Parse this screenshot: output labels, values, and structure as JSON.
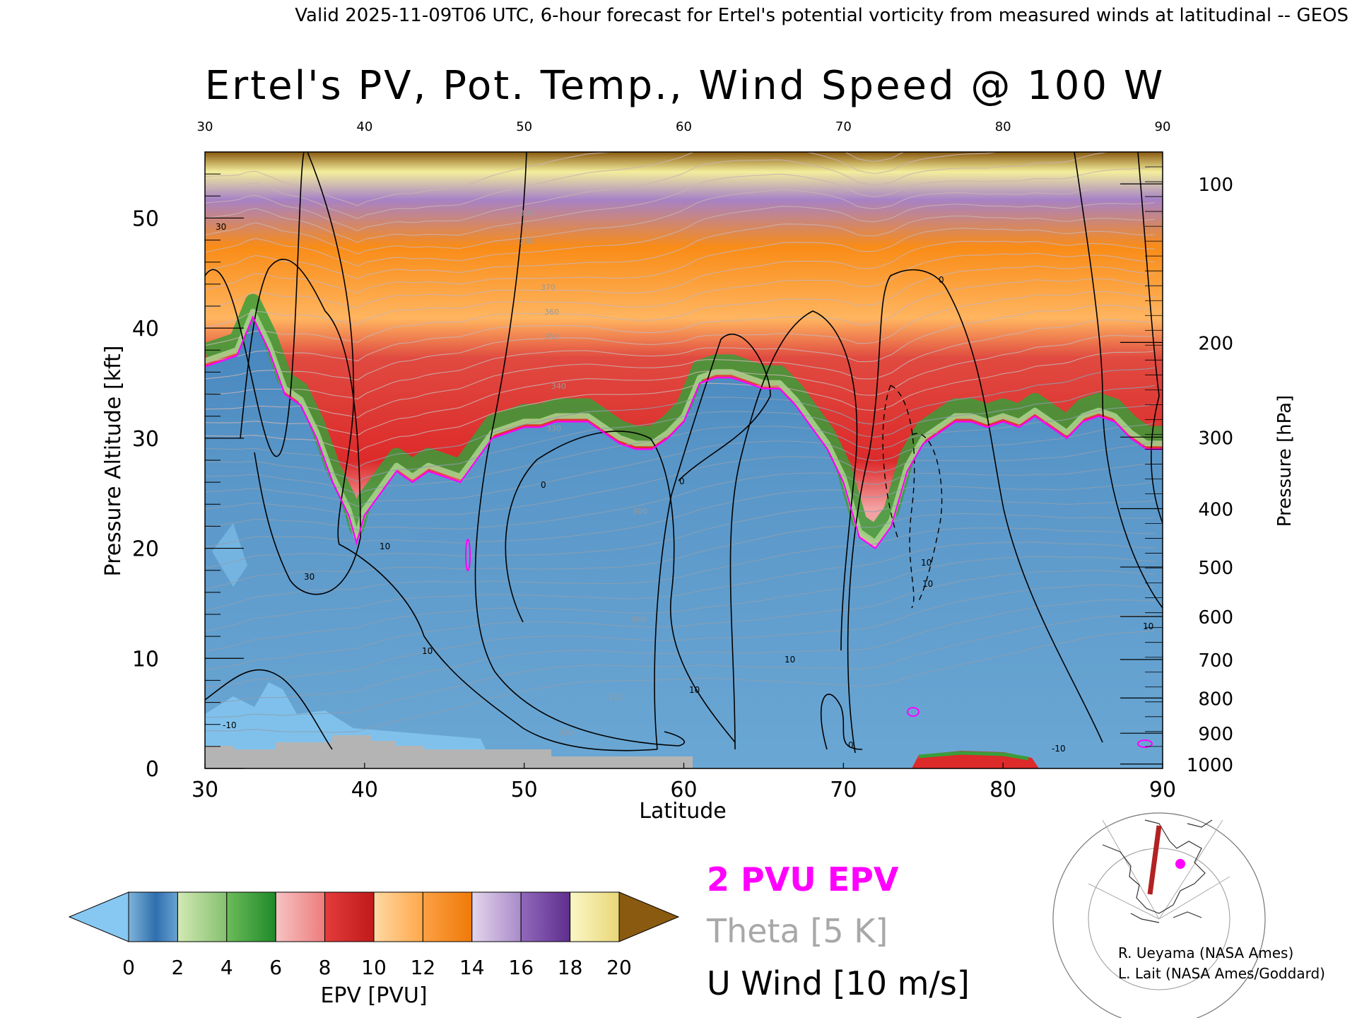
{
  "header": {
    "valid_text": "Valid 2025-11-09T06 UTC, 6-hour forecast for Ertel's potential vorticity from measured winds at latitudinal -- GEOS"
  },
  "chart_data": {
    "type": "heatmap",
    "title": "Ertel's PV, Pot. Temp., Wind Speed @ 100 W",
    "xlabel": "Latitude",
    "ylabel_left": "Pressure Altitude [kft]",
    "ylabel_right": "Pressure [hPa]",
    "xlim": [
      30,
      90
    ],
    "ylim": [
      0,
      56
    ],
    "x_ticks": [
      "30",
      "40",
      "50",
      "60",
      "70",
      "80",
      "90"
    ],
    "y_ticks_left": [
      "0",
      "10",
      "20",
      "30",
      "40",
      "50"
    ],
    "y_ticks_right": [
      {
        "label": "100",
        "kft": 53.1
      },
      {
        "label": "200",
        "kft": 38.7
      },
      {
        "label": "300",
        "kft": 30.1
      },
      {
        "label": "400",
        "kft": 23.6
      },
      {
        "label": "500",
        "kft": 18.3
      },
      {
        "label": "600",
        "kft": 13.8
      },
      {
        "label": "700",
        "kft": 9.9
      },
      {
        "label": "800",
        "kft": 6.4
      },
      {
        "label": "900",
        "kft": 3.2
      },
      {
        "label": "1000",
        "kft": 0.4
      }
    ],
    "tropopause_2pvu_kft": [
      [
        30,
        36.5
      ],
      [
        31,
        37
      ],
      [
        32,
        37.5
      ],
      [
        33,
        41
      ],
      [
        34,
        38
      ],
      [
        35,
        34
      ],
      [
        36,
        33
      ],
      [
        37,
        30
      ],
      [
        38,
        26
      ],
      [
        39,
        23
      ],
      [
        39.5,
        20.5
      ],
      [
        40,
        23
      ],
      [
        41,
        25
      ],
      [
        42,
        27
      ],
      [
        43,
        26
      ],
      [
        44,
        27
      ],
      [
        45,
        26.5
      ],
      [
        46,
        26
      ],
      [
        47,
        28
      ],
      [
        48,
        30
      ],
      [
        49,
        30.5
      ],
      [
        50,
        31
      ],
      [
        51,
        31
      ],
      [
        52,
        31.5
      ],
      [
        53,
        31.5
      ],
      [
        54,
        31.5
      ],
      [
        55,
        30.5
      ],
      [
        56,
        29.5
      ],
      [
        57,
        29
      ],
      [
        58,
        29
      ],
      [
        59,
        30
      ],
      [
        60,
        31.5
      ],
      [
        61,
        35
      ],
      [
        62,
        35.5
      ],
      [
        63,
        35.5
      ],
      [
        64,
        35
      ],
      [
        65,
        34.5
      ],
      [
        66,
        34.5
      ],
      [
        67,
        33
      ],
      [
        68,
        31
      ],
      [
        69,
        29
      ],
      [
        70,
        26
      ],
      [
        71,
        21
      ],
      [
        72,
        20
      ],
      [
        73,
        22
      ],
      [
        74,
        27
      ],
      [
        75,
        29.5
      ],
      [
        76,
        30.5
      ],
      [
        77,
        31.5
      ],
      [
        78,
        31.5
      ],
      [
        79,
        31
      ],
      [
        80,
        31.5
      ],
      [
        81,
        31
      ],
      [
        82,
        32
      ],
      [
        83,
        31
      ],
      [
        84,
        30
      ],
      [
        85,
        31.5
      ],
      [
        86,
        32
      ],
      [
        87,
        31.5
      ],
      [
        88,
        30
      ],
      [
        89,
        29
      ],
      [
        90,
        29
      ]
    ],
    "colorbar": {
      "label": "EPV [PVU]",
      "ticks": [
        "0",
        "2",
        "4",
        "6",
        "8",
        "10",
        "12",
        "14",
        "16",
        "18",
        "20"
      ],
      "colors": [
        "#2f6fae",
        "#9ec98f",
        "#3a9d3a",
        "#f3a2a2",
        "#dd2a2a",
        "#ffb560",
        "#f98c17",
        "#c4b0d8",
        "#7d4ea5",
        "#f3ee9c"
      ],
      "under_color": "#86c8f2",
      "over_color": "#8a5a10"
    },
    "legend": {
      "epv": {
        "text": "2 PVU EPV",
        "color": "#ff00ff"
      },
      "theta": {
        "text": "Theta [5 K]",
        "color": "#a8a8a8"
      },
      "uwind": {
        "text": "U Wind [10 m/s]",
        "color": "#000000"
      }
    },
    "u_wind_contour_labels": [
      "30",
      "10",
      "0",
      "-10"
    ],
    "theta_labels": [
      "300",
      "310",
      "320",
      "330",
      "340",
      "350",
      "360",
      "370",
      "380",
      "390"
    ]
  },
  "credits": {
    "line1": "R. Ueyama (NASA Ames)",
    "line2": "L. Lait (NASA Ames/Goddard)"
  },
  "inset_map": {
    "marker_color": "#ff00ff",
    "track_color": "#b22222"
  }
}
